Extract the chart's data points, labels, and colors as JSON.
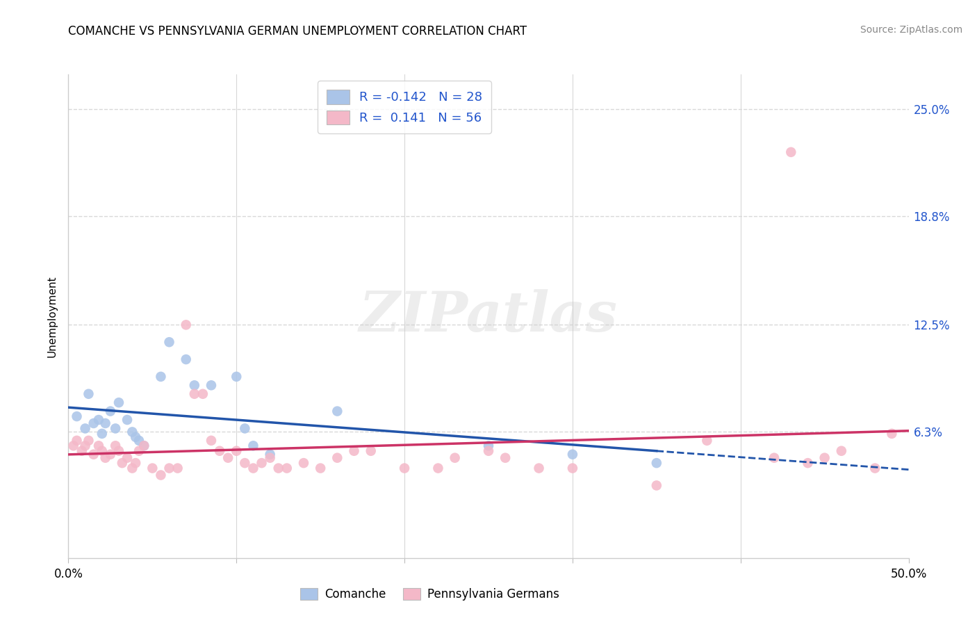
{
  "title": "COMANCHE VS PENNSYLVANIA GERMAN UNEMPLOYMENT CORRELATION CHART",
  "source": "Source: ZipAtlas.com",
  "ylabel": "Unemployment",
  "ytick_values": [
    6.3,
    12.5,
    18.8,
    25.0
  ],
  "xlim": [
    0.0,
    50.0
  ],
  "ylim": [
    -1.0,
    27.0
  ],
  "legend_blue_r": "-0.142",
  "legend_blue_n": "28",
  "legend_pink_r": "0.141",
  "legend_pink_n": "56",
  "blue_color": "#aac4e8",
  "pink_color": "#f4b8c8",
  "blue_line_color": "#2255aa",
  "pink_line_color": "#cc3366",
  "watermark_text": "ZIPatlas",
  "background_color": "#ffffff",
  "grid_color": "#d8d8d8",
  "blue_scatter": [
    [
      0.5,
      7.2
    ],
    [
      1.0,
      6.5
    ],
    [
      1.2,
      8.5
    ],
    [
      1.5,
      6.8
    ],
    [
      1.8,
      7.0
    ],
    [
      2.0,
      6.2
    ],
    [
      2.2,
      6.8
    ],
    [
      2.5,
      7.5
    ],
    [
      2.8,
      6.5
    ],
    [
      3.0,
      8.0
    ],
    [
      3.5,
      7.0
    ],
    [
      3.8,
      6.3
    ],
    [
      4.0,
      6.0
    ],
    [
      4.2,
      5.8
    ],
    [
      4.5,
      5.5
    ],
    [
      5.5,
      9.5
    ],
    [
      6.0,
      11.5
    ],
    [
      7.0,
      10.5
    ],
    [
      7.5,
      9.0
    ],
    [
      8.5,
      9.0
    ],
    [
      10.0,
      9.5
    ],
    [
      10.5,
      6.5
    ],
    [
      11.0,
      5.5
    ],
    [
      12.0,
      5.0
    ],
    [
      16.0,
      7.5
    ],
    [
      25.0,
      5.5
    ],
    [
      30.0,
      5.0
    ],
    [
      35.0,
      4.5
    ]
  ],
  "pink_scatter": [
    [
      0.3,
      5.5
    ],
    [
      0.5,
      5.8
    ],
    [
      0.8,
      5.2
    ],
    [
      1.0,
      5.5
    ],
    [
      1.2,
      5.8
    ],
    [
      1.5,
      5.0
    ],
    [
      1.8,
      5.5
    ],
    [
      2.0,
      5.2
    ],
    [
      2.2,
      4.8
    ],
    [
      2.5,
      5.0
    ],
    [
      2.8,
      5.5
    ],
    [
      3.0,
      5.2
    ],
    [
      3.2,
      4.5
    ],
    [
      3.5,
      4.8
    ],
    [
      3.8,
      4.2
    ],
    [
      4.0,
      4.5
    ],
    [
      4.2,
      5.2
    ],
    [
      4.5,
      5.5
    ],
    [
      5.0,
      4.2
    ],
    [
      5.5,
      3.8
    ],
    [
      6.0,
      4.2
    ],
    [
      6.5,
      4.2
    ],
    [
      7.0,
      12.5
    ],
    [
      7.5,
      8.5
    ],
    [
      8.0,
      8.5
    ],
    [
      8.5,
      5.8
    ],
    [
      9.0,
      5.2
    ],
    [
      9.5,
      4.8
    ],
    [
      10.0,
      5.2
    ],
    [
      10.5,
      4.5
    ],
    [
      11.0,
      4.2
    ],
    [
      11.5,
      4.5
    ],
    [
      12.0,
      4.8
    ],
    [
      12.5,
      4.2
    ],
    [
      13.0,
      4.2
    ],
    [
      14.0,
      4.5
    ],
    [
      15.0,
      4.2
    ],
    [
      16.0,
      4.8
    ],
    [
      17.0,
      5.2
    ],
    [
      18.0,
      5.2
    ],
    [
      20.0,
      4.2
    ],
    [
      22.0,
      4.2
    ],
    [
      23.0,
      4.8
    ],
    [
      25.0,
      5.2
    ],
    [
      26.0,
      4.8
    ],
    [
      28.0,
      4.2
    ],
    [
      30.0,
      4.2
    ],
    [
      35.0,
      3.2
    ],
    [
      38.0,
      5.8
    ],
    [
      42.0,
      4.8
    ],
    [
      43.0,
      22.5
    ],
    [
      44.0,
      4.5
    ],
    [
      45.0,
      4.8
    ],
    [
      46.0,
      5.2
    ],
    [
      48.0,
      4.2
    ],
    [
      49.0,
      6.2
    ]
  ]
}
